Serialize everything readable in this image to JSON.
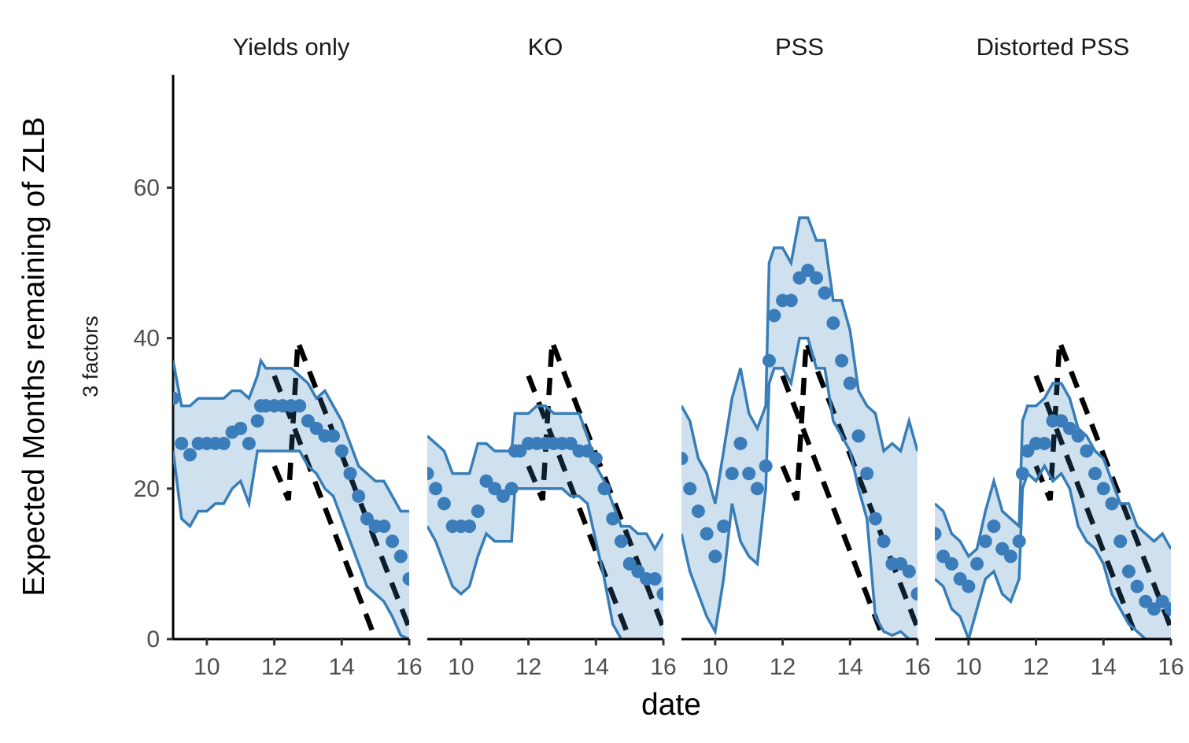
{
  "chart_data": {
    "type": "line",
    "xlabel": "date",
    "ylabel": "Expected Months remaining of ZLB",
    "row_label": "3 factors",
    "xlim": [
      9,
      16
    ],
    "ylim": [
      0,
      75
    ],
    "x_ticks": [
      10,
      12,
      14,
      16
    ],
    "x_tick_labels": [
      "10",
      "12",
      "14",
      "16"
    ],
    "y_ticks": [
      0,
      20,
      40,
      60
    ],
    "y_tick_labels": [
      "0",
      "20",
      "40",
      "60"
    ],
    "grid": false,
    "legend": "none",
    "colors": {
      "points": "#3a7dba",
      "band_line": "#377eb8",
      "band_fill": "#377eb8",
      "reference": "#000000"
    },
    "x": [
      9,
      9.25,
      9.5,
      9.75,
      10,
      10.25,
      10.5,
      10.75,
      11,
      11.25,
      11.5,
      11.6,
      11.75,
      12,
      12.25,
      12.5,
      12.75,
      13,
      13.25,
      13.5,
      13.75,
      14,
      14.25,
      14.5,
      14.75,
      15,
      15.25,
      15.5,
      15.75,
      16
    ],
    "reference_lines": [
      {
        "style": "dashed",
        "points": [
          [
            12,
            35
          ],
          [
            15,
            0
          ]
        ]
      },
      {
        "style": "dashed",
        "points": [
          [
            12,
            23
          ],
          [
            12.42,
            18.5
          ],
          [
            12.7,
            39.5
          ],
          [
            16,
            1.5
          ]
        ]
      }
    ],
    "panels": [
      {
        "title": "Yields only",
        "mean": [
          32,
          26,
          24.5,
          26,
          26,
          26,
          26,
          27.5,
          28,
          26,
          29,
          31,
          31,
          31,
          31,
          31,
          31,
          29,
          28,
          27,
          27,
          25,
          22,
          19,
          16,
          15,
          15,
          13,
          11,
          8
        ],
        "upper": [
          37,
          31,
          31,
          32,
          32,
          32,
          32,
          33,
          33,
          32,
          35,
          37,
          36,
          36,
          36,
          36,
          35,
          34,
          32,
          33,
          31,
          29,
          26,
          23,
          22,
          21,
          21,
          19,
          17,
          17
        ],
        "lower": [
          25,
          16,
          15,
          17,
          17,
          18,
          18,
          20,
          21,
          18,
          25,
          25,
          25,
          25,
          25,
          25,
          25,
          23,
          22,
          20,
          19,
          16,
          13,
          10,
          7,
          6,
          5,
          3,
          0.5,
          0
        ]
      },
      {
        "title": "KO",
        "mean": [
          22,
          20,
          18,
          15,
          15,
          15,
          17,
          21,
          20,
          19,
          20,
          25,
          25,
          26,
          26,
          26,
          26,
          26,
          26,
          25,
          25,
          24,
          20,
          16,
          13,
          10,
          9,
          8,
          8,
          6
        ],
        "upper": [
          27,
          26,
          25,
          22,
          22,
          22,
          26,
          26,
          25,
          25,
          25,
          30,
          30,
          30,
          31,
          31,
          30,
          30,
          30,
          30,
          27,
          23,
          21,
          18,
          15,
          15,
          14,
          14,
          12,
          14
        ],
        "lower": [
          15,
          13,
          10,
          7,
          6,
          7,
          11,
          14,
          13,
          13,
          13,
          20,
          20,
          20,
          20,
          20,
          20,
          20,
          19,
          19,
          18,
          13,
          8,
          2,
          0,
          0,
          0,
          0,
          0,
          0
        ]
      },
      {
        "title": "PSS",
        "mean": [
          24,
          20,
          17,
          14,
          11,
          15,
          22,
          26,
          22,
          20,
          23,
          37,
          43,
          45,
          45,
          48,
          49,
          48,
          46,
          42,
          37,
          34,
          27,
          22,
          16,
          13,
          10,
          10,
          9,
          6
        ],
        "upper": [
          31,
          29,
          24,
          22,
          18,
          25,
          32,
          36,
          30,
          28,
          31,
          50,
          52,
          52,
          50,
          56,
          56,
          53,
          53,
          45,
          45,
          41,
          33,
          31,
          30,
          25,
          26,
          25,
          29,
          25
        ],
        "lower": [
          14,
          9,
          6,
          3,
          1,
          8,
          18,
          13,
          11,
          10,
          20,
          34,
          36,
          36,
          34,
          40,
          40,
          36,
          36,
          29,
          27,
          25,
          20,
          16,
          3,
          1,
          0.5,
          1,
          0,
          0
        ]
      },
      {
        "title": "Distorted PSS",
        "mean": [
          14,
          11,
          10,
          8,
          7,
          10,
          13,
          15,
          12,
          11,
          13,
          22,
          25,
          26,
          26,
          29,
          29,
          28,
          27,
          25,
          22,
          20,
          18,
          13,
          9,
          7,
          5,
          4,
          5,
          4
        ],
        "upper": [
          18,
          17,
          14,
          13,
          11,
          12,
          17,
          21,
          17,
          16,
          15,
          29,
          31,
          31,
          32,
          34,
          34,
          32,
          28,
          27,
          25,
          24,
          21,
          18,
          18,
          15,
          14,
          13,
          14,
          12
        ],
        "lower": [
          8,
          7,
          4,
          3,
          0,
          4,
          8,
          9,
          6,
          5,
          8,
          20,
          22,
          21,
          23,
          21,
          22,
          20,
          15,
          13,
          12,
          10,
          6,
          4,
          2,
          1,
          0,
          0,
          0,
          0
        ]
      }
    ]
  }
}
